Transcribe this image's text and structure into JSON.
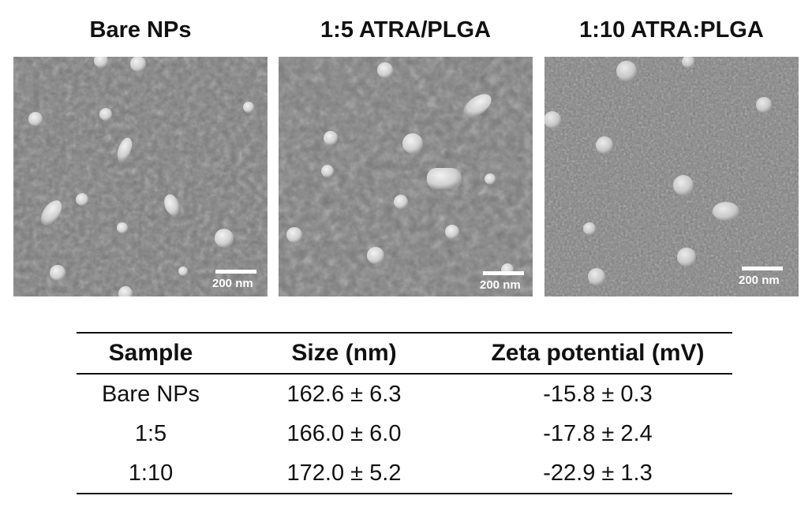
{
  "panels": [
    {
      "title": "Bare NPs",
      "scale_label": "200 nm"
    },
    {
      "title": "1:5 ATRA/PLGA",
      "scale_label": "200 nm"
    },
    {
      "title": "1:10 ATRA:PLGA",
      "scale_label": "200 nm"
    }
  ],
  "table": {
    "headers": [
      "Sample",
      "Size (nm)",
      "Zeta potential (mV)"
    ],
    "rows": [
      [
        "Bare NPs",
        "162.6 ± 6.3",
        "-15.8 ± 0.3"
      ],
      [
        "1:5",
        "166.0 ± 6.0",
        "-17.8 ± 2.4"
      ],
      [
        "1:10",
        "172.0 ± 5.2",
        "-22.9 ± 1.3"
      ]
    ]
  },
  "colors": {
    "sem_background": "#7d7d7d",
    "particle": "#d9d9d9",
    "text": "#111111"
  }
}
